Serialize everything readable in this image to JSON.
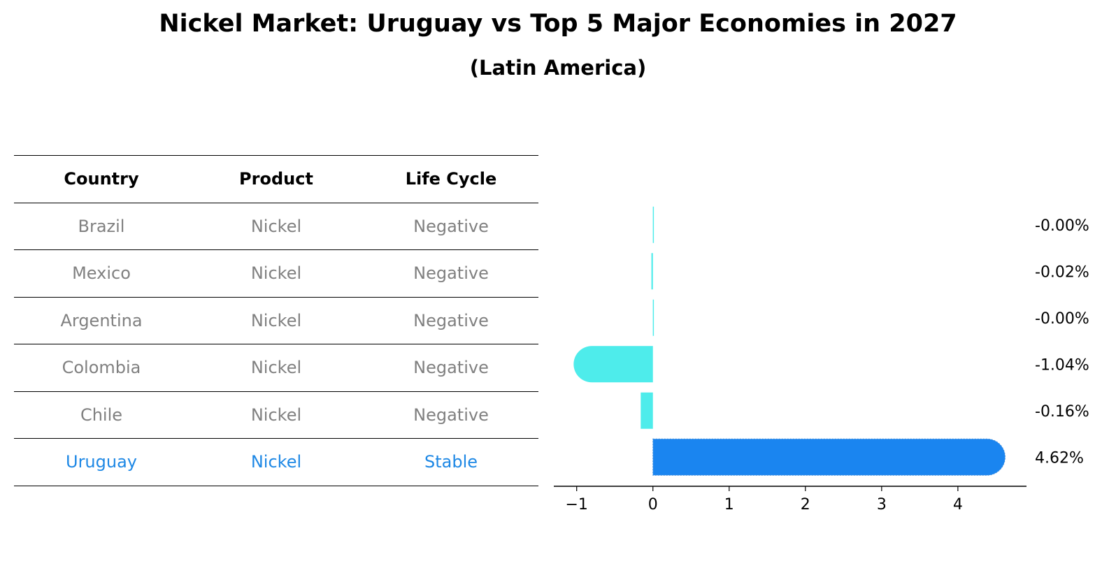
{
  "title": "Nickel Market: Uruguay vs Top 5 Major Economies in 2027",
  "subtitle": "(Latin America)",
  "table": {
    "headers": [
      "Country",
      "Product",
      "Life Cycle"
    ],
    "rows": [
      [
        "Brazil",
        "Nickel",
        "Negative"
      ],
      [
        "Mexico",
        "Nickel",
        "Negative"
      ],
      [
        "Argentina",
        "Nickel",
        "Negative"
      ],
      [
        "Colombia",
        "Nickel",
        "Negative"
      ],
      [
        "Chile",
        "Nickel",
        "Negative"
      ],
      [
        "Uruguay",
        "Nickel",
        "Stable"
      ]
    ],
    "highlight_row": 5
  },
  "colors": {
    "highlight": "#1e88e5",
    "bar_highlight": "#1a85f0",
    "bar_other": "#4eeceb",
    "muted_text": "#808080"
  },
  "chart_data": {
    "type": "bar",
    "orientation": "horizontal",
    "categories": [
      "Brazil",
      "Mexico",
      "Argentina",
      "Colombia",
      "Chile",
      "Uruguay"
    ],
    "values": [
      -0.001,
      -0.02,
      -0.001,
      -1.04,
      -0.16,
      4.62
    ],
    "value_labels": [
      "-0.00%",
      "-0.02%",
      "-0.00%",
      "-1.04%",
      "-0.16%",
      "4.62%"
    ],
    "xlim": [
      -1.3,
      4.9
    ],
    "xticks": [
      -1,
      0,
      1,
      2,
      3,
      4
    ],
    "xtick_labels": [
      "−1",
      "0",
      "1",
      "2",
      "3",
      "4"
    ],
    "highlight": "Uruguay",
    "grid": false
  }
}
